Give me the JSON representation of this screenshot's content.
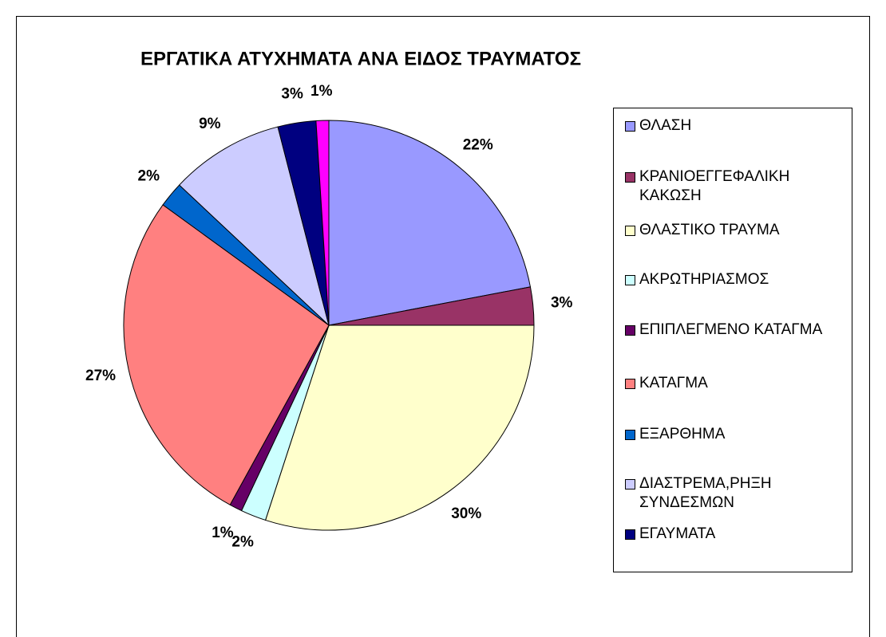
{
  "chart_data": {
    "type": "pie",
    "title": "ΕΡΓΑΤΙΚΑ ΑΤΥΧΗΜΑΤΑ ΑΝΑ ΕΙΔΟΣ ΤΡΑΥΜΑΤΟΣ",
    "categories": [
      "ΘΛΑΣΗ",
      "ΚΡΑΝΙΟΕΓΓΕΦΑΛΙΚΗ ΚΑΚΩΣΗ",
      "ΘΛΑΣΤΙΚΟ ΤΡΑΥΜΑ",
      "ΑΚΡΩΤΗΡΙΑΣΜΟΣ",
      "ΕΠΙΠΛΕΓΜΕΝΟ ΚΑΤΑΓΜΑ",
      "ΚΑΤΑΓΜΑ",
      "ΕΞΑΡΘΗΜΑ",
      "ΔΙΑΣΤΡΕΜΑ,ΡΗΞΗ ΣΥΝΔΕΣΜΩΝ",
      "ΕΓΑΥΜΑΤΑ",
      null
    ],
    "values": [
      22,
      3,
      30,
      2,
      1,
      27,
      2,
      9,
      3,
      1
    ],
    "value_labels": [
      "22%",
      "3%",
      "30%",
      "2%",
      "1%",
      "27%",
      "2%",
      "9%",
      "3%",
      "1%"
    ],
    "colors": [
      "#9999ff",
      "#993366",
      "#ffffcc",
      "#ccffff",
      "#660066",
      "#ff8080",
      "#0066cc",
      "#ccccff",
      "#000080",
      "#ff00ff"
    ],
    "legend": "right"
  }
}
